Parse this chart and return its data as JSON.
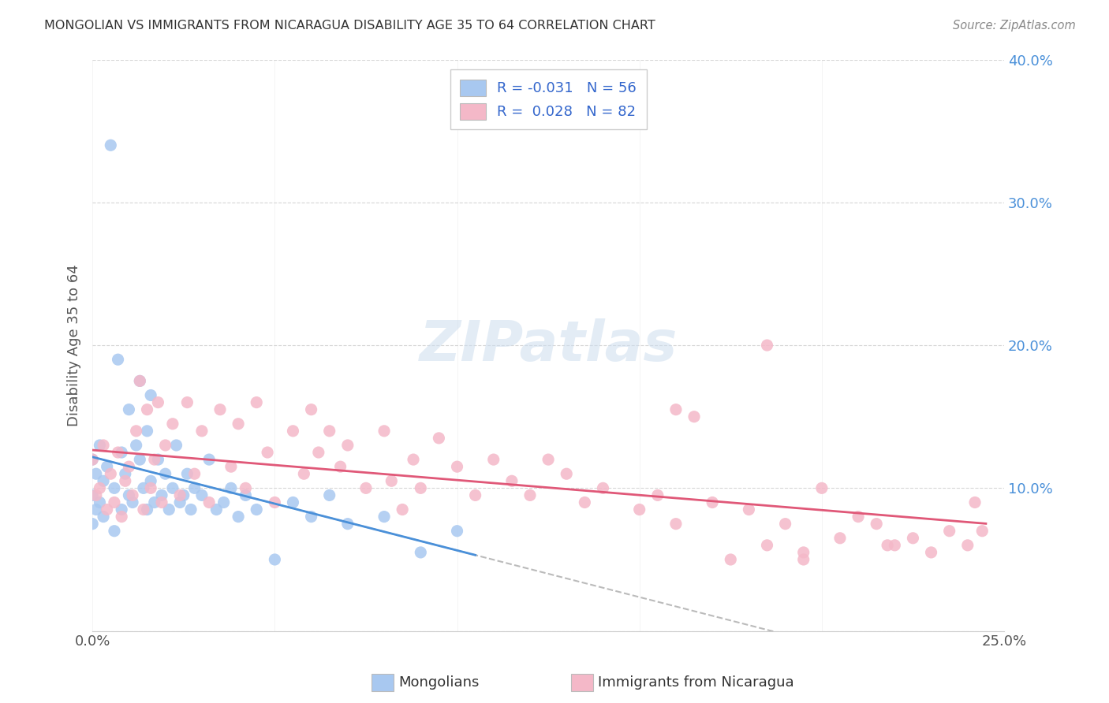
{
  "title": "MONGOLIAN VS IMMIGRANTS FROM NICARAGUA DISABILITY AGE 35 TO 64 CORRELATION CHART",
  "source": "Source: ZipAtlas.com",
  "xlabel_mongolians": "Mongolians",
  "xlabel_nicaragua": "Immigrants from Nicaragua",
  "ylabel": "Disability Age 35 to 64",
  "xlim": [
    0.0,
    0.25
  ],
  "ylim": [
    0.0,
    0.4
  ],
  "mongolian_color": "#a8c8f0",
  "nicaragua_color": "#f4b8c8",
  "trendline_blue": "#4a90d9",
  "trendline_pink": "#e05878",
  "mongolian_scatter_x": [
    0.0,
    0.0,
    0.0,
    0.001,
    0.001,
    0.002,
    0.002,
    0.003,
    0.003,
    0.004,
    0.005,
    0.006,
    0.006,
    0.007,
    0.008,
    0.008,
    0.009,
    0.01,
    0.01,
    0.011,
    0.012,
    0.013,
    0.013,
    0.014,
    0.015,
    0.015,
    0.016,
    0.016,
    0.017,
    0.018,
    0.019,
    0.02,
    0.021,
    0.022,
    0.023,
    0.024,
    0.025,
    0.026,
    0.027,
    0.028,
    0.03,
    0.032,
    0.034,
    0.036,
    0.038,
    0.04,
    0.042,
    0.045,
    0.05,
    0.055,
    0.06,
    0.065,
    0.07,
    0.08,
    0.09,
    0.1
  ],
  "mongolian_scatter_y": [
    0.12,
    0.095,
    0.075,
    0.11,
    0.085,
    0.13,
    0.09,
    0.105,
    0.08,
    0.115,
    0.34,
    0.1,
    0.07,
    0.19,
    0.125,
    0.085,
    0.11,
    0.095,
    0.155,
    0.09,
    0.13,
    0.175,
    0.12,
    0.1,
    0.14,
    0.085,
    0.165,
    0.105,
    0.09,
    0.12,
    0.095,
    0.11,
    0.085,
    0.1,
    0.13,
    0.09,
    0.095,
    0.11,
    0.085,
    0.1,
    0.095,
    0.12,
    0.085,
    0.09,
    0.1,
    0.08,
    0.095,
    0.085,
    0.05,
    0.09,
    0.08,
    0.095,
    0.075,
    0.08,
    0.055,
    0.07
  ],
  "nicaragua_scatter_x": [
    0.0,
    0.001,
    0.002,
    0.003,
    0.004,
    0.005,
    0.006,
    0.007,
    0.008,
    0.009,
    0.01,
    0.011,
    0.012,
    0.013,
    0.014,
    0.015,
    0.016,
    0.017,
    0.018,
    0.019,
    0.02,
    0.022,
    0.024,
    0.026,
    0.028,
    0.03,
    0.032,
    0.035,
    0.038,
    0.04,
    0.042,
    0.045,
    0.048,
    0.05,
    0.055,
    0.058,
    0.06,
    0.062,
    0.065,
    0.068,
    0.07,
    0.075,
    0.08,
    0.082,
    0.085,
    0.088,
    0.09,
    0.095,
    0.1,
    0.105,
    0.11,
    0.115,
    0.12,
    0.125,
    0.13,
    0.135,
    0.14,
    0.15,
    0.155,
    0.16,
    0.165,
    0.17,
    0.175,
    0.18,
    0.185,
    0.19,
    0.195,
    0.2,
    0.205,
    0.21,
    0.215,
    0.22,
    0.225,
    0.23,
    0.235,
    0.24,
    0.242,
    0.244,
    0.218,
    0.195,
    0.185,
    0.16
  ],
  "nicaragua_scatter_y": [
    0.12,
    0.095,
    0.1,
    0.13,
    0.085,
    0.11,
    0.09,
    0.125,
    0.08,
    0.105,
    0.115,
    0.095,
    0.14,
    0.175,
    0.085,
    0.155,
    0.1,
    0.12,
    0.16,
    0.09,
    0.13,
    0.145,
    0.095,
    0.16,
    0.11,
    0.14,
    0.09,
    0.155,
    0.115,
    0.145,
    0.1,
    0.16,
    0.125,
    0.09,
    0.14,
    0.11,
    0.155,
    0.125,
    0.14,
    0.115,
    0.13,
    0.1,
    0.14,
    0.105,
    0.085,
    0.12,
    0.1,
    0.135,
    0.115,
    0.095,
    0.12,
    0.105,
    0.095,
    0.12,
    0.11,
    0.09,
    0.1,
    0.085,
    0.095,
    0.075,
    0.15,
    0.09,
    0.05,
    0.085,
    0.06,
    0.075,
    0.055,
    0.1,
    0.065,
    0.08,
    0.075,
    0.06,
    0.065,
    0.055,
    0.07,
    0.06,
    0.09,
    0.07,
    0.06,
    0.05,
    0.2,
    0.155
  ]
}
